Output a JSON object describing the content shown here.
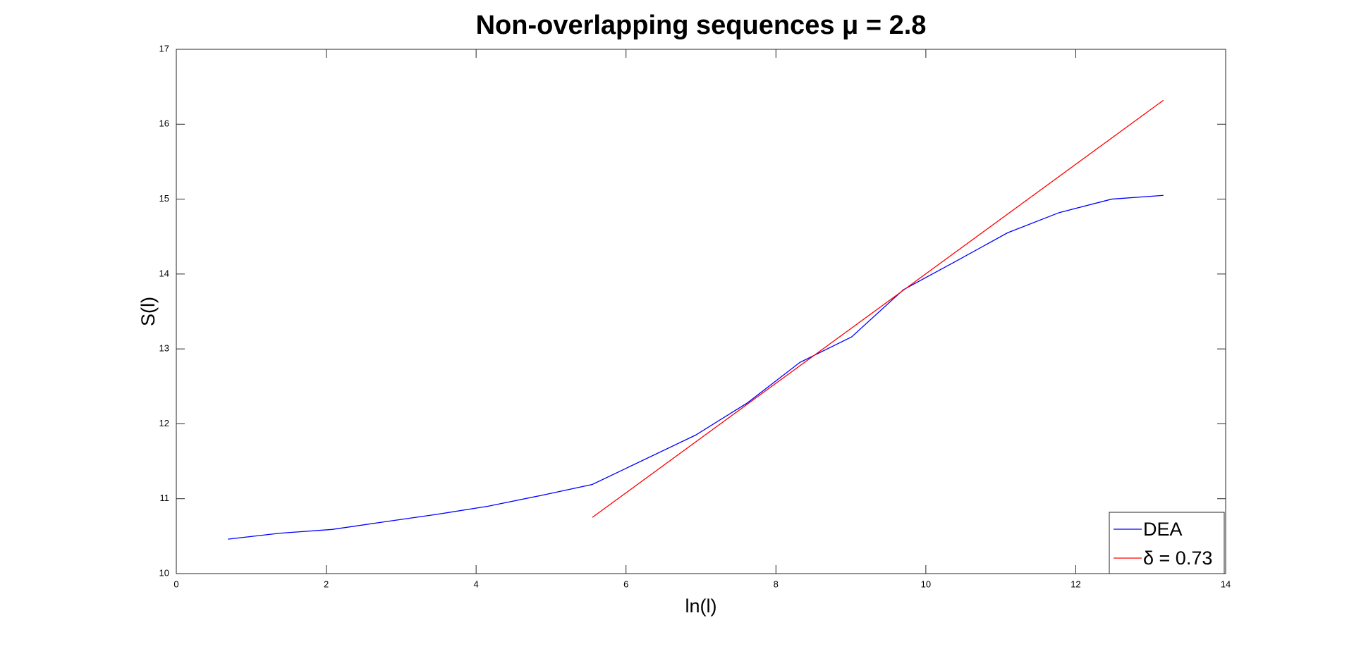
{
  "chart_data": {
    "type": "line",
    "title": "Non-overlapping sequences μ = 2.8",
    "xlabel": "ln(l)",
    "ylabel": "S(l)",
    "xlim": [
      0,
      14
    ],
    "xticks": [
      0,
      2,
      4,
      6,
      8,
      10,
      12,
      14
    ],
    "ylim": [
      10,
      17
    ],
    "yticks": [
      10,
      11,
      12,
      13,
      14,
      15,
      16,
      17
    ],
    "grid": false,
    "legend": "bottom-right",
    "series": [
      {
        "name": "DEA",
        "color": "#0000ff",
        "x": [
          0.69,
          1.39,
          2.08,
          2.77,
          3.47,
          4.16,
          4.85,
          5.55,
          6.93,
          7.62,
          8.32,
          9.01,
          9.7,
          10.4,
          11.09,
          11.78,
          12.48,
          13.17
        ],
        "values": [
          10.46,
          10.54,
          10.59,
          10.69,
          10.79,
          10.9,
          11.04,
          11.19,
          11.85,
          12.28,
          12.82,
          13.16,
          13.79,
          14.17,
          14.55,
          14.82,
          15.0,
          15.05
        ]
      },
      {
        "name": "δ = 0.73",
        "color": "#ff0000",
        "x": [
          5.55,
          13.17
        ],
        "values": [
          10.75,
          16.32
        ]
      }
    ]
  }
}
